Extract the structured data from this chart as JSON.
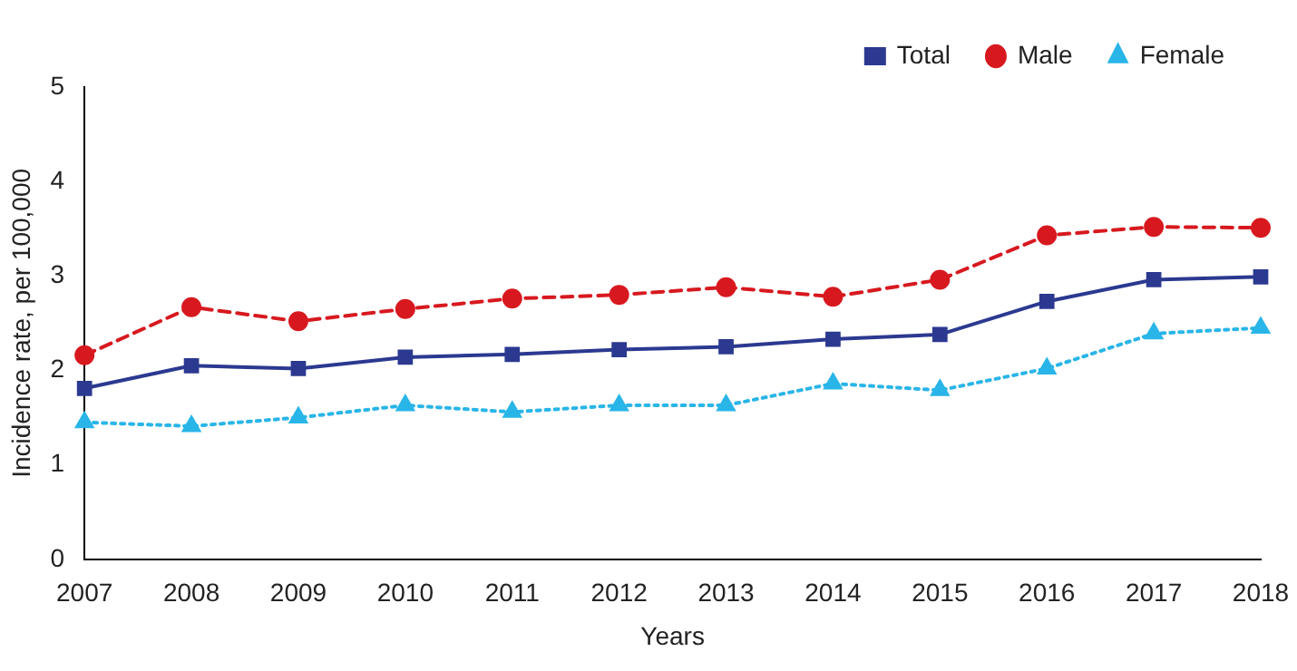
{
  "chart_data": {
    "type": "line",
    "xlabel": "Years",
    "ylabel": "Incidence rate, per 100,000",
    "categories": [
      "2007",
      "2008",
      "2009",
      "2010",
      "2011",
      "2012",
      "2013",
      "2014",
      "2015",
      "2016",
      "2017",
      "2018"
    ],
    "series": [
      {
        "name": "Total",
        "color": "#2b3990",
        "marker": "square",
        "line_style": "solid",
        "values": [
          1.81,
          2.05,
          2.02,
          2.14,
          2.17,
          2.22,
          2.25,
          2.33,
          2.38,
          2.73,
          2.96,
          2.99
        ]
      },
      {
        "name": "Male",
        "color": "#d7191f",
        "marker": "circle",
        "line_style": "dashed",
        "values": [
          2.16,
          2.67,
          2.52,
          2.65,
          2.76,
          2.8,
          2.88,
          2.78,
          2.96,
          3.43,
          3.52,
          3.51
        ]
      },
      {
        "name": "Female",
        "color": "#29b5e8",
        "marker": "triangle",
        "line_style": "dotted",
        "values": [
          1.45,
          1.41,
          1.5,
          1.63,
          1.56,
          1.63,
          1.63,
          1.86,
          1.79,
          2.02,
          2.39,
          2.45
        ]
      }
    ],
    "ylim": [
      0,
      5
    ],
    "yticks": [
      0,
      1,
      2,
      3,
      4,
      5
    ],
    "grid": false,
    "legend": "top right"
  }
}
